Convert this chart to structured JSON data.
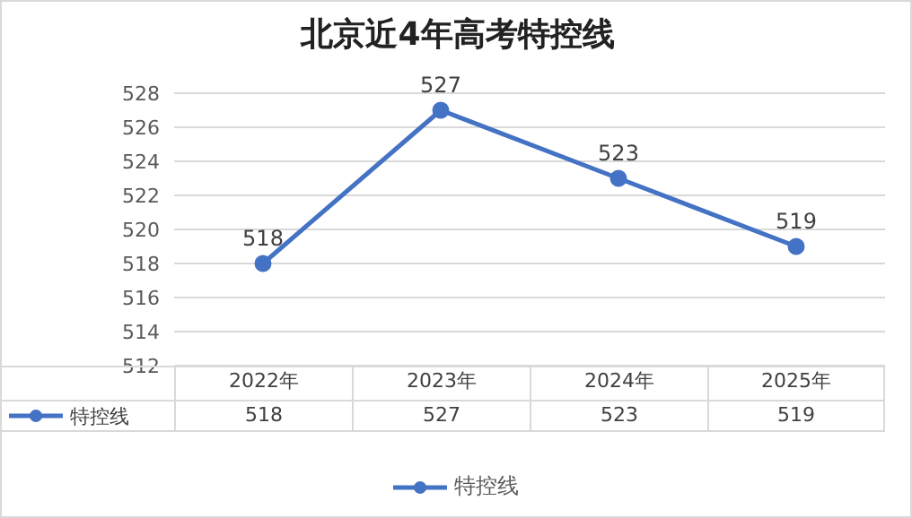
{
  "chart_data": {
    "type": "line",
    "title": "北京近4年高考特控线",
    "categories": [
      "2022年",
      "2023年",
      "2024年",
      "2025年"
    ],
    "series": [
      {
        "name": "特控线",
        "color": "#4472c4",
        "values": [
          518,
          527,
          523,
          519
        ],
        "value_labels": [
          "518",
          "527",
          "523",
          "519"
        ]
      }
    ],
    "ylim": [
      512,
      528
    ],
    "yticks": [
      512,
      514,
      516,
      518,
      520,
      522,
      524,
      526,
      528
    ],
    "grid": "y",
    "legend": "bottom",
    "marker": "circle"
  }
}
